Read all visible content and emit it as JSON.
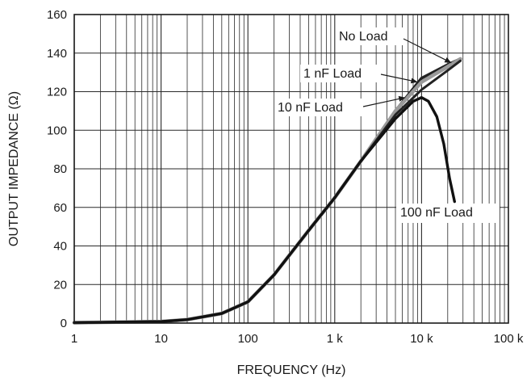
{
  "chart_data": {
    "type": "line",
    "title": "",
    "xlabel": "FREQUENCY (Hz)",
    "ylabel": "OUTPUT IMPEDANCE (Ω)",
    "x_scale": "log",
    "xlim": [
      1,
      100000
    ],
    "ylim": [
      0,
      160
    ],
    "grid": true,
    "x_ticks": [
      1,
      10,
      100,
      1000,
      10000,
      100000
    ],
    "x_tick_labels": [
      "1",
      "10",
      "100",
      "1 k",
      "10 k",
      "100 k"
    ],
    "y_ticks": [
      0,
      20,
      40,
      60,
      80,
      100,
      120,
      140,
      160
    ],
    "y_tick_labels": [
      "0",
      "20",
      "40",
      "60",
      "80",
      "100",
      "120",
      "140",
      "160"
    ],
    "series": [
      {
        "name": "No Load",
        "color": "#222222",
        "x": [
          1,
          10,
          20,
          50,
          100,
          200,
          500,
          1000,
          2000,
          5000,
          10000,
          20000,
          28000
        ],
        "y": [
          0.2,
          0.8,
          1.8,
          5,
          11,
          25,
          48,
          65,
          84,
          110,
          127,
          134,
          137
        ]
      },
      {
        "name": "1 nF Load",
        "color": "#9a9a9a",
        "x": [
          1,
          10,
          20,
          50,
          100,
          200,
          500,
          1000,
          2000,
          5000,
          10000,
          20000,
          28000
        ],
        "y": [
          0.2,
          0.8,
          1.8,
          5,
          11,
          25,
          48,
          65,
          84,
          110,
          125,
          133,
          137
        ]
      },
      {
        "name": "10 nF Load",
        "color": "#222222",
        "x": [
          1,
          10,
          20,
          50,
          100,
          200,
          500,
          1000,
          2000,
          5000,
          10000,
          20000,
          28000
        ],
        "y": [
          0.2,
          0.8,
          1.8,
          5,
          11,
          25,
          48,
          65,
          84,
          108,
          121,
          131,
          136
        ]
      },
      {
        "name": "100 nF Load",
        "color": "#111111",
        "x": [
          1,
          10,
          20,
          50,
          100,
          200,
          500,
          1000,
          2000,
          5000,
          8000,
          10000,
          12000,
          15000,
          18000,
          21000,
          24000
        ],
        "y": [
          0.2,
          0.8,
          1.8,
          5,
          11,
          25,
          48,
          65,
          84,
          106,
          115,
          117,
          115,
          107,
          93,
          75,
          63
        ]
      }
    ],
    "annotations": [
      {
        "text": "No Load",
        "series": "No Load",
        "x": 22000,
        "y": 135
      },
      {
        "text": "1 nF Load",
        "series": "1 nF Load",
        "x": 9000,
        "y": 125
      },
      {
        "text": "10 nF Load",
        "series": "10 nF Load",
        "x": 6500,
        "y": 117
      },
      {
        "text": "100 nF Load",
        "series": "100 nF Load",
        "x": 24000,
        "y": 63
      }
    ]
  }
}
